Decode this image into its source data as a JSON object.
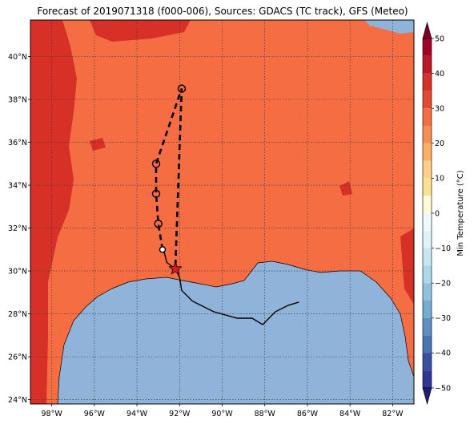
{
  "title": "Forecast of 2019071318 (f000-006), Sources: GDACS (TC track), GFS (Meteo)",
  "map": {
    "lon_range": [
      -99.0,
      -81.0
    ],
    "lat_range": [
      23.8,
      41.7
    ],
    "lon_ticks": [
      -98,
      -96,
      -94,
      -92,
      -90,
      -88,
      -86,
      -84,
      -82
    ],
    "lon_tick_labels": [
      "98°W",
      "96°W",
      "94°W",
      "92°W",
      "90°W",
      "88°W",
      "86°W",
      "84°W",
      "82°W"
    ],
    "lat_ticks": [
      24,
      26,
      28,
      30,
      32,
      34,
      36,
      38,
      40
    ],
    "lat_tick_labels": [
      "24°N",
      "26°N",
      "28°N",
      "30°N",
      "32°N",
      "34°N",
      "36°N",
      "38°N",
      "40°N"
    ],
    "grid": true,
    "colors": {
      "ocean": "#8fb3d9",
      "land_base": "#f46d43",
      "land_warm": "#d73027",
      "track": "#000000",
      "storm_marker": "#e31a1c"
    }
  },
  "colorbar": {
    "label": "Min Temperature (°C)",
    "ticks": [
      50,
      40,
      30,
      20,
      10,
      0,
      -10,
      -20,
      -30,
      -40,
      -50
    ],
    "tick_labels": [
      "50",
      "40",
      "30",
      "20",
      "10",
      "0",
      "−10",
      "−20",
      "−30",
      "−40",
      "−50"
    ],
    "bands": [
      {
        "from": 45,
        "to": 50,
        "color": "#a50026"
      },
      {
        "from": 40,
        "to": 45,
        "color": "#be1826"
      },
      {
        "from": 35,
        "to": 40,
        "color": "#d73027"
      },
      {
        "from": 30,
        "to": 35,
        "color": "#e34a33"
      },
      {
        "from": 25,
        "to": 30,
        "color": "#f46d43"
      },
      {
        "from": 20,
        "to": 25,
        "color": "#f88d52"
      },
      {
        "from": 15,
        "to": 20,
        "color": "#fdae61"
      },
      {
        "from": 10,
        "to": 15,
        "color": "#fed08a"
      },
      {
        "from": 5,
        "to": 10,
        "color": "#fee090"
      },
      {
        "from": 0,
        "to": 5,
        "color": "#fffbd7"
      },
      {
        "from": -5,
        "to": 0,
        "color": "#f0f9fb"
      },
      {
        "from": -10,
        "to": -5,
        "color": "#e0f3f8"
      },
      {
        "from": -15,
        "to": -10,
        "color": "#c6e6f0"
      },
      {
        "from": -20,
        "to": -15,
        "color": "#abd9e9"
      },
      {
        "from": -25,
        "to": -20,
        "color": "#8fc3dd"
      },
      {
        "from": -30,
        "to": -25,
        "color": "#74add1"
      },
      {
        "from": -35,
        "to": -30,
        "color": "#5d8fc2"
      },
      {
        "from": -40,
        "to": -35,
        "color": "#4575b4"
      },
      {
        "from": -45,
        "to": -40,
        "color": "#3a4fa0"
      },
      {
        "from": -50,
        "to": -45,
        "color": "#313695"
      }
    ],
    "extend_top_color": "#7f0022",
    "extend_bottom_color": "#1f1f7a"
  },
  "track": {
    "forecast_points": [
      {
        "lon": -91.9,
        "lat": 38.5
      },
      {
        "lon": -93.1,
        "lat": 35.0
      },
      {
        "lon": -93.1,
        "lat": 33.6
      },
      {
        "lon": -93.0,
        "lat": 32.2
      },
      {
        "lon": -92.8,
        "lat": 31.0
      }
    ],
    "past_track": [
      [
        -92.8,
        31.1
      ],
      [
        -92.7,
        30.8
      ],
      [
        -92.6,
        30.4
      ],
      [
        -92.2,
        30.1
      ],
      [
        -92.0,
        29.7
      ],
      [
        -91.9,
        29.1
      ],
      [
        -91.4,
        28.6
      ],
      [
        -90.4,
        28.1
      ],
      [
        -89.3,
        27.8
      ],
      [
        -88.6,
        27.8
      ],
      [
        -88.1,
        27.5
      ],
      [
        -87.5,
        28.1
      ],
      [
        -86.9,
        28.4
      ],
      [
        -86.4,
        28.55
      ]
    ],
    "current_position": {
      "lon": -92.2,
      "lat": 30.1
    }
  }
}
